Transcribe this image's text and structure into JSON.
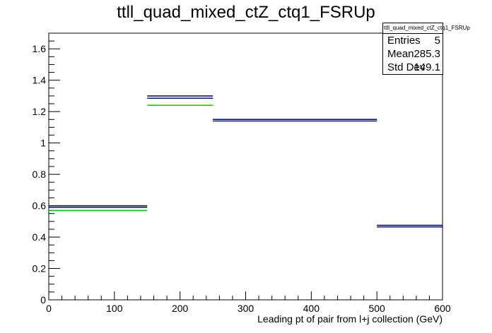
{
  "title": "ttll_quad_mixed_ctZ_ctq1_FSRUp",
  "stats": {
    "name": "ttll_quad_mixed_ctZ_ctq1_FSRUp",
    "rows": [
      {
        "label": "Entries",
        "value": "5"
      },
      {
        "label": "Mean",
        "value": "285.3"
      },
      {
        "label": "Std Dev",
        "value": "149.1"
      }
    ]
  },
  "chart_data": {
    "type": "histogram-step",
    "title": "ttll_quad_mixed_ctZ_ctq1_FSRUp",
    "xlabel": "Leading pt of pair from l+j collection (GeV)",
    "ylabel": "",
    "xlim": [
      0,
      600
    ],
    "ylim": [
      0,
      1.7
    ],
    "x_ticks": [
      0,
      100,
      200,
      300,
      400,
      500,
      600
    ],
    "y_ticks": [
      0,
      0.2,
      0.4,
      0.6,
      0.8,
      1,
      1.2,
      1.4,
      1.6
    ],
    "bins": [
      [
        0,
        150
      ],
      [
        150,
        250
      ],
      [
        250,
        500
      ],
      [
        500,
        600
      ]
    ],
    "series": [
      {
        "color": "#000080",
        "values": [
          0.6,
          1.3,
          1.15,
          0.475
        ]
      },
      {
        "color": "#0000cc",
        "values": [
          0.59,
          1.285,
          1.14,
          0.465
        ]
      },
      {
        "color": "#00cc00",
        "values": [
          0.57,
          1.24,
          null,
          null
        ]
      }
    ],
    "grid": false,
    "legend": "stats box top-right"
  }
}
